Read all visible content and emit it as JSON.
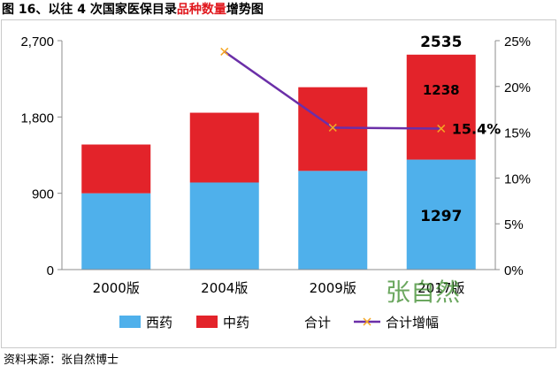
{
  "title": {
    "prefix": "图 16、以往 4 次国家医保目录",
    "highlight": "品种数量",
    "suffix": "增势图"
  },
  "source": "资料来源：张自然博士",
  "watermark": "张自然",
  "colors": {
    "western": "#4fb0eb",
    "chinese": "#e3232a",
    "growth_line": "#6b2fa8",
    "growth_marker": "#f5a623",
    "highlight_text": "#e0161c"
  },
  "chart_data": {
    "type": "bar",
    "stacked": true,
    "categories": [
      "2000版",
      "2004版",
      "2009版",
      "2017版"
    ],
    "series": [
      {
        "name": "西药",
        "values": [
          900,
          1027,
          1164,
          1297
        ]
      },
      {
        "name": "中药",
        "values": [
          575,
          823,
          987,
          1238
        ]
      }
    ],
    "totals": {
      "name": "合计",
      "values": [
        1475,
        1850,
        2151,
        2535
      ]
    },
    "line_series": {
      "name": "合计增幅",
      "axis": "right",
      "values": [
        null,
        23.8,
        15.5,
        15.4
      ]
    },
    "ylim_left": [
      0,
      2700
    ],
    "yticks_left": [
      "0",
      "900",
      "1,800",
      "2,700"
    ],
    "ylim_right": [
      0,
      25
    ],
    "yticks_right": [
      "0%",
      "5%",
      "10%",
      "15%",
      "20%",
      "25%"
    ],
    "data_labels": {
      "total_2017": "2535",
      "chinese_2017": "1238",
      "western_2017": "1297",
      "growth_2017": "15.4%"
    },
    "legend": [
      "西药",
      "中药",
      "合计",
      "合计增幅"
    ],
    "legend_position": "bottom"
  }
}
